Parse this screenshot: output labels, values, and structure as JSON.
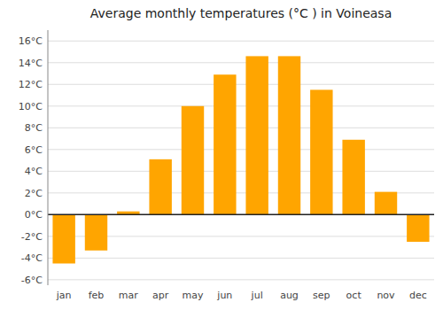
{
  "chart_data": {
    "type": "bar",
    "title": "Average monthly temperatures (°C ) in Voineasa",
    "categories": [
      "jan",
      "feb",
      "mar",
      "apr",
      "may",
      "jun",
      "jul",
      "aug",
      "sep",
      "oct",
      "nov",
      "dec"
    ],
    "values": [
      -4.5,
      -3.3,
      0.3,
      5.1,
      10.0,
      12.9,
      14.6,
      14.6,
      11.5,
      6.9,
      2.1,
      -2.5
    ],
    "color": "#FFA500",
    "ylim": [
      -6.5,
      17
    ],
    "yticks": [
      {
        "value": -6,
        "label": "-6°C"
      },
      {
        "value": -4,
        "label": "-4°C"
      },
      {
        "value": -2,
        "label": "-2°C"
      },
      {
        "value": 0,
        "label": "0°C"
      },
      {
        "value": 2,
        "label": "2°C"
      },
      {
        "value": 4,
        "label": "4°C"
      },
      {
        "value": 6,
        "label": "6°C"
      },
      {
        "value": 8,
        "label": "8°C"
      },
      {
        "value": 10,
        "label": "10°C"
      },
      {
        "value": 12,
        "label": "12°C"
      },
      {
        "value": 14,
        "label": "14°C"
      },
      {
        "value": 16,
        "label": "16°C"
      }
    ],
    "grid": true
  }
}
